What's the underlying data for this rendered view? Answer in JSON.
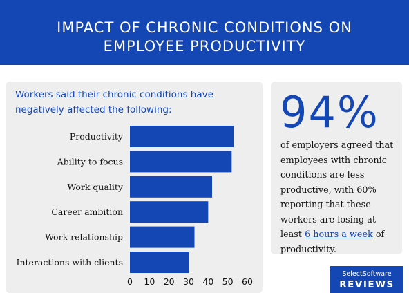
{
  "header": {
    "title_line1": "IMPACT OF CHRONIC CONDITIONS ON",
    "title_line2": "EMPLOYEE PRODUCTIVITY"
  },
  "colors": {
    "brand": "#1446b4",
    "card": "#eeeeee",
    "text": "#111111"
  },
  "chart_data": {
    "type": "bar",
    "orientation": "horizontal",
    "subtitle_line1": "Workers said their chronic conditions have",
    "subtitle_line2": "negatively affected the following:",
    "categories": [
      "Productivity",
      "Ability to focus",
      "Work quality",
      "Career ambition",
      "Work relationship",
      "Interactions with clients"
    ],
    "values": [
      53,
      52,
      42,
      40,
      33,
      30
    ],
    "xticks": [
      0,
      10,
      20,
      30,
      40,
      50,
      60
    ],
    "xlim": [
      0,
      60
    ],
    "grid": false
  },
  "stat": {
    "number": "94%",
    "line1": "of employers agreed that",
    "line2": "employees with chronic",
    "line3": "conditions are less",
    "line4": "productive, with 60%",
    "line5": "reporting that these",
    "line6": "workers are losing at",
    "line7_before": "least ",
    "line7_link": "6 hours a week",
    "line7_after": " of",
    "line8": "productivity."
  },
  "logo": {
    "top": "SelectSoftware",
    "bottom": "REVIEWS"
  }
}
